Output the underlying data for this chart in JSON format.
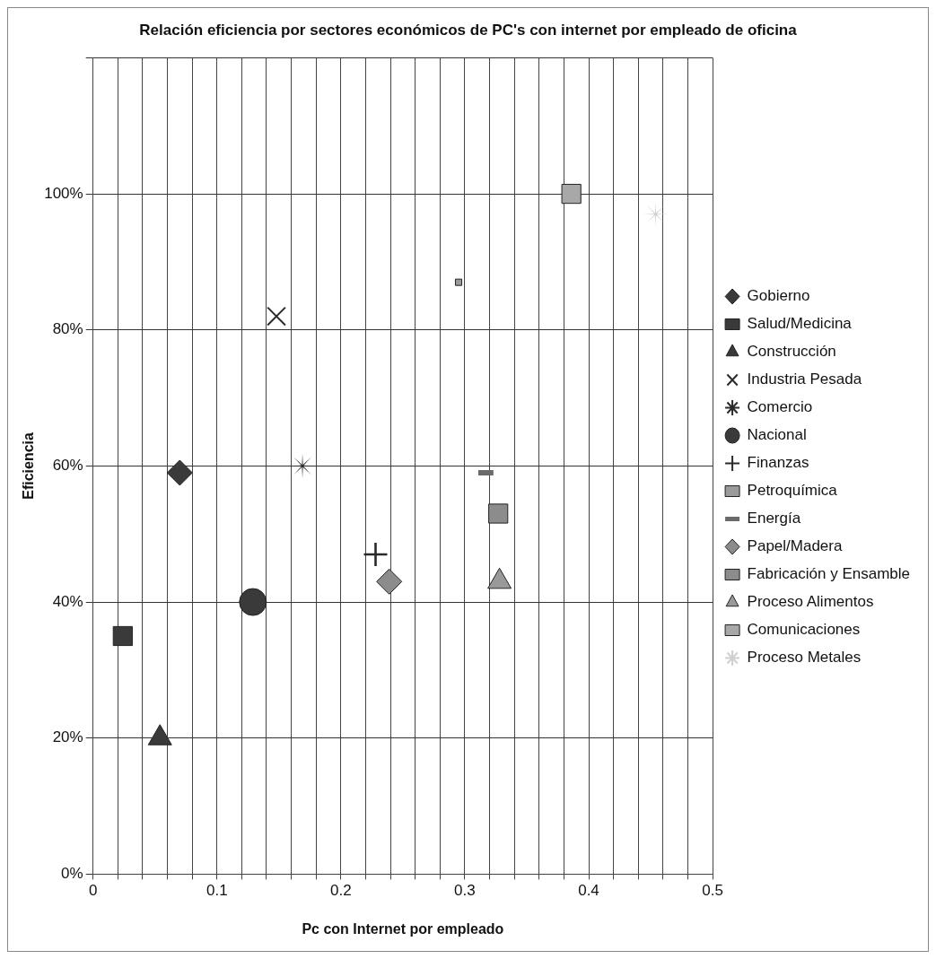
{
  "chart_data": {
    "type": "scatter",
    "title": "Relación eficiencia por sectores económicos de PC's con internet por empleado de oficina",
    "xlabel": "Pc con Internet por empleado",
    "ylabel": "Eficiencia",
    "xlim": [
      0,
      0.5
    ],
    "xticks": [
      0,
      {
        "value": 0.02,
        "label": null
      },
      {
        "value": 0.04,
        "label": null
      },
      {
        "value": 0.06,
        "label": null
      },
      {
        "value": 0.08,
        "label": null
      },
      0.1,
      {
        "value": 0.12,
        "label": null
      },
      {
        "value": 0.14,
        "label": null
      },
      {
        "value": 0.16,
        "label": null
      },
      {
        "value": 0.18,
        "label": null
      },
      0.2,
      {
        "value": 0.22,
        "label": null
      },
      {
        "value": 0.24,
        "label": null
      },
      {
        "value": 0.26,
        "label": null
      },
      {
        "value": 0.28,
        "label": null
      },
      0.3,
      {
        "value": 0.32,
        "label": null
      },
      {
        "value": 0.34,
        "label": null
      },
      {
        "value": 0.36,
        "label": null
      },
      {
        "value": 0.38,
        "label": null
      },
      0.4,
      {
        "value": 0.42,
        "label": null
      },
      {
        "value": 0.44,
        "label": null
      },
      {
        "value": 0.46,
        "label": null
      },
      {
        "value": 0.48,
        "label": null
      },
      0.5
    ],
    "ylim": [
      0,
      1.2
    ],
    "yticks": [
      {
        "value": 0,
        "label": "0%"
      },
      {
        "value": 0.2,
        "label": "20%"
      },
      {
        "value": 0.4,
        "label": "40%"
      },
      {
        "value": 0.6,
        "label": "60%"
      },
      {
        "value": 0.8,
        "label": "80%"
      },
      {
        "value": 1,
        "label": "100%"
      },
      {
        "value": 1.2,
        "label": null
      }
    ],
    "grid": true,
    "legend": "right",
    "series": [
      {
        "name": "Gobierno",
        "color": "#3a3a3a",
        "marker": "diamond",
        "x": [
          0.07
        ],
        "values": [
          0.59
        ]
      },
      {
        "name": "Salud/Medicina",
        "color": "#3a3a3a",
        "marker": "square",
        "x": [
          0.024
        ],
        "values": [
          0.35
        ]
      },
      {
        "name": "Construcción",
        "color": "#3a3a3a",
        "marker": "triangle",
        "x": [
          0.054
        ],
        "values": [
          0.2
        ]
      },
      {
        "name": "Industria Pesada",
        "color": "#2a2a2a",
        "marker": "x",
        "x": [
          0.148
        ],
        "values": [
          0.82
        ]
      },
      {
        "name": "Comercio",
        "color": "#2a2a2a",
        "marker": "star",
        "x": [
          0.169
        ],
        "values": [
          0.6
        ]
      },
      {
        "name": "Nacional",
        "color": "#3a3a3a",
        "marker": "circle",
        "x": [
          0.129
        ],
        "values": [
          0.4
        ]
      },
      {
        "name": "Finanzas",
        "color": "#2a2a2a",
        "marker": "cross",
        "x": [
          0.228
        ],
        "values": [
          0.47
        ]
      },
      {
        "name": "Petroquímica",
        "color": "#9a9a9a",
        "marker": "square",
        "x": [
          0.295
        ],
        "values": [
          0.87
        ]
      },
      {
        "name": "Energía",
        "color": "#6a6a6a",
        "x": [
          0.317
        ],
        "values": [
          0.59
        ]
      },
      {
        "name": "Papel/Madera",
        "color": "#8c8c8c",
        "marker": "diamond",
        "x": [
          0.239
        ],
        "values": [
          0.43
        ]
      },
      {
        "name": "Fabricación y Ensamble",
        "color": "#8c8c8c",
        "marker": "square",
        "x": [
          0.327
        ],
        "values": [
          0.53
        ]
      },
      {
        "name": "Proceso Alimentos",
        "color": "#999999",
        "marker": "triangle",
        "x": [
          0.328
        ],
        "values": [
          0.43
        ]
      },
      {
        "name": "Comunicaciones",
        "color": "#a8a8a8",
        "marker": "square",
        "x": [
          0.386
        ],
        "values": [
          1.0
        ]
      },
      {
        "name": "Proceso Metales",
        "color": "#d0d0d0",
        "marker": "star",
        "x": [
          0.454
        ],
        "values": [
          0.97
        ]
      }
    ]
  }
}
